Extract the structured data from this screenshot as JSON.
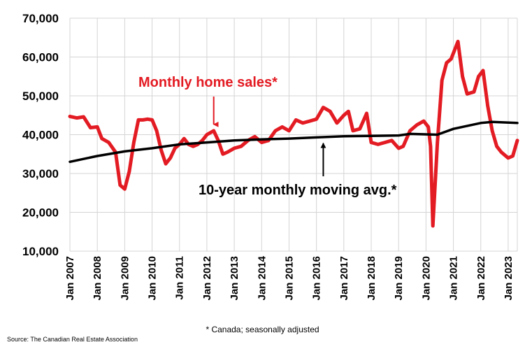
{
  "chart_data": {
    "type": "line",
    "ylim": [
      10000,
      70000
    ],
    "y_ticks": [
      "70,000",
      "60,000",
      "50,000",
      "40,000",
      "30,000",
      "20,000",
      "10,000"
    ],
    "y_tick_values": [
      70000,
      60000,
      50000,
      40000,
      30000,
      20000,
      10000
    ],
    "x_range": [
      "2007-01",
      "2023-05"
    ],
    "x_ticks": [
      "Jan 2007",
      "Jan 2008",
      "Jan 2009",
      "Jan 2010",
      "Jan 2011",
      "Jan 2012",
      "Jan 2013",
      "Jan 2014",
      "Jan 2015",
      "Jan 2016",
      "Jan 2017",
      "Jan 2018",
      "Jan 2019",
      "Jan 2020",
      "Jan 2021",
      "Jan 2022",
      "Jan 2023"
    ],
    "grid": true,
    "series": [
      {
        "name": "Monthly home sales*",
        "color": "#e31b23",
        "points": [
          [
            "2007-01",
            44700
          ],
          [
            "2007-04",
            44300
          ],
          [
            "2007-07",
            44600
          ],
          [
            "2007-10",
            41800
          ],
          [
            "2008-01",
            42000
          ],
          [
            "2008-03",
            39000
          ],
          [
            "2008-06",
            38000
          ],
          [
            "2008-09",
            35500
          ],
          [
            "2008-11",
            27000
          ],
          [
            "2009-01",
            26000
          ],
          [
            "2009-03",
            30500
          ],
          [
            "2009-05",
            38000
          ],
          [
            "2009-07",
            43800
          ],
          [
            "2009-09",
            43800
          ],
          [
            "2009-11",
            44000
          ],
          [
            "2010-01",
            43800
          ],
          [
            "2010-03",
            41000
          ],
          [
            "2010-05",
            36000
          ],
          [
            "2010-07",
            32500
          ],
          [
            "2010-09",
            34000
          ],
          [
            "2010-11",
            36500
          ],
          [
            "2011-01",
            37500
          ],
          [
            "2011-03",
            39000
          ],
          [
            "2011-05",
            37500
          ],
          [
            "2011-07",
            37000
          ],
          [
            "2011-09",
            37500
          ],
          [
            "2011-11",
            38500
          ],
          [
            "2012-01",
            40000
          ],
          [
            "2012-04",
            41000
          ],
          [
            "2012-06",
            38500
          ],
          [
            "2012-08",
            35000
          ],
          [
            "2012-10",
            35500
          ],
          [
            "2013-01",
            36500
          ],
          [
            "2013-04",
            37000
          ],
          [
            "2013-07",
            38500
          ],
          [
            "2013-10",
            39500
          ],
          [
            "2014-01",
            38000
          ],
          [
            "2014-04",
            38500
          ],
          [
            "2014-07",
            41000
          ],
          [
            "2014-10",
            42000
          ],
          [
            "2015-01",
            41000
          ],
          [
            "2015-04",
            43800
          ],
          [
            "2015-07",
            43000
          ],
          [
            "2015-10",
            43500
          ],
          [
            "2016-01",
            44000
          ],
          [
            "2016-04",
            47000
          ],
          [
            "2016-07",
            46000
          ],
          [
            "2016-10",
            43000
          ],
          [
            "2017-01",
            45000
          ],
          [
            "2017-03",
            46000
          ],
          [
            "2017-05",
            41000
          ],
          [
            "2017-08",
            41500
          ],
          [
            "2017-11",
            45500
          ],
          [
            "2018-01",
            38000
          ],
          [
            "2018-04",
            37500
          ],
          [
            "2018-07",
            38000
          ],
          [
            "2018-10",
            38500
          ],
          [
            "2019-01",
            36500
          ],
          [
            "2019-03",
            37000
          ],
          [
            "2019-06",
            41000
          ],
          [
            "2019-09",
            42500
          ],
          [
            "2019-12",
            43500
          ],
          [
            "2020-02",
            42000
          ],
          [
            "2020-03",
            37000
          ],
          [
            "2020-04",
            16500
          ],
          [
            "2020-06",
            38000
          ],
          [
            "2020-08",
            54000
          ],
          [
            "2020-10",
            58500
          ],
          [
            "2020-12",
            59500
          ],
          [
            "2021-03",
            64000
          ],
          [
            "2021-05",
            55000
          ],
          [
            "2021-07",
            50500
          ],
          [
            "2021-10",
            51000
          ],
          [
            "2021-12",
            55000
          ],
          [
            "2022-02",
            56500
          ],
          [
            "2022-04",
            47500
          ],
          [
            "2022-06",
            41000
          ],
          [
            "2022-08",
            37000
          ],
          [
            "2022-10",
            35500
          ],
          [
            "2023-01",
            34000
          ],
          [
            "2023-03",
            34500
          ],
          [
            "2023-05",
            38500
          ]
        ]
      },
      {
        "name": "10-year monthly moving avg.*",
        "color": "#000000",
        "points": [
          [
            "2007-01",
            33000
          ],
          [
            "2008-01",
            34500
          ],
          [
            "2009-01",
            35700
          ],
          [
            "2010-01",
            36500
          ],
          [
            "2011-01",
            37500
          ],
          [
            "2012-01",
            38000
          ],
          [
            "2013-01",
            38500
          ],
          [
            "2014-01",
            38800
          ],
          [
            "2015-01",
            39000
          ],
          [
            "2016-01",
            39300
          ],
          [
            "2017-01",
            39600
          ],
          [
            "2018-01",
            39700
          ],
          [
            "2019-01",
            39800
          ],
          [
            "2019-06",
            40200
          ],
          [
            "2020-06",
            40000
          ],
          [
            "2021-01",
            41500
          ],
          [
            "2022-01",
            43000
          ],
          [
            "2022-06",
            43300
          ],
          [
            "2023-05",
            43000
          ]
        ]
      }
    ],
    "annotations": {
      "sales_label": "Monthly home sales*",
      "avg_label": "10-year monthly moving avg.*",
      "sales_arrow_at": [
        "2012-04",
        41200
      ],
      "avg_arrow_at": [
        "2016-04",
        39600
      ]
    },
    "footnote": "* Canada; seasonally adjusted",
    "source": "Source: The Canadian Real Estate Association"
  }
}
